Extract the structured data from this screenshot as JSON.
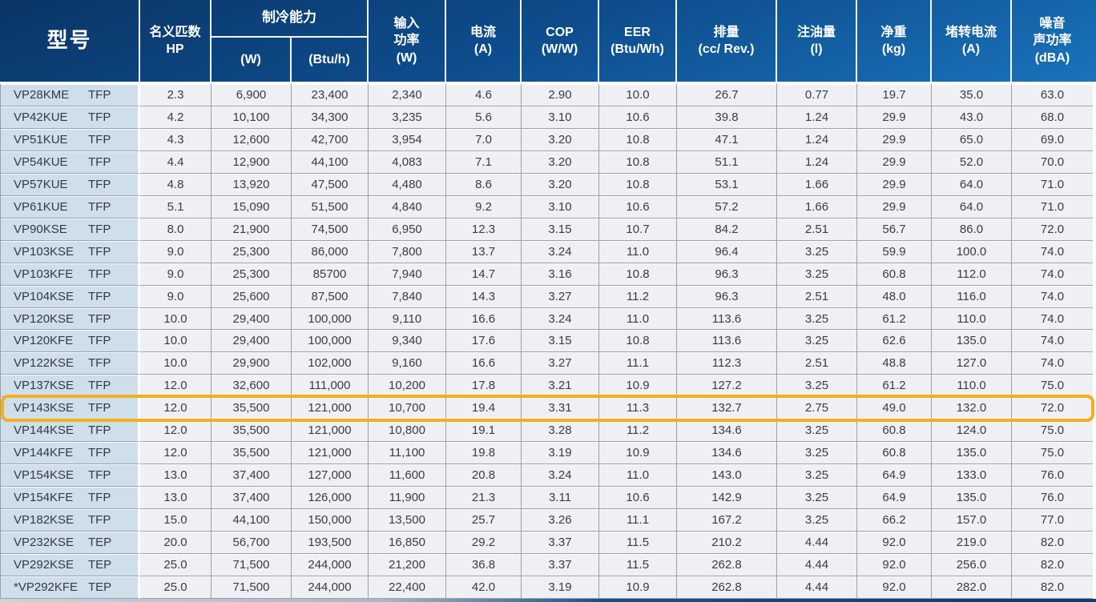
{
  "table": {
    "header": {
      "model": "型号",
      "hp": [
        "名义匹数",
        "HP"
      ],
      "cooling": "制冷能力",
      "cooling_w": "(W)",
      "cooling_btuh": "(Btu/h)",
      "input_power": [
        "输入",
        "功率",
        "(W)"
      ],
      "current": [
        "电流",
        "(A)"
      ],
      "cop": [
        "COP",
        "(W/W)"
      ],
      "eer": [
        "EER",
        "(Btu/Wh)"
      ],
      "displacement": [
        "排量",
        "(cc/ Rev.)"
      ],
      "oil_charge": [
        "注油量",
        "(l)"
      ],
      "net_weight": [
        "净重",
        "(kg)"
      ],
      "locked_rotor_current": [
        "堵转电流",
        "(A)"
      ],
      "noise": [
        "噪音",
        "声功率",
        "(dBA)"
      ]
    },
    "rows": [
      {
        "model": "VP28KME",
        "type": "TFP",
        "values": [
          "2.3",
          "6,900",
          "23,400",
          "2,340",
          "4.6",
          "2.90",
          "10.0",
          "26.7",
          "0.77",
          "19.7",
          "35.0",
          "63.0"
        ]
      },
      {
        "model": "VP42KUE",
        "type": "TFP",
        "values": [
          "4.2",
          "10,100",
          "34,300",
          "3,235",
          "5.6",
          "3.10",
          "10.6",
          "39.8",
          "1.24",
          "29.9",
          "43.0",
          "68.0"
        ]
      },
      {
        "model": "VP51KUE",
        "type": "TFP",
        "values": [
          "4.3",
          "12,600",
          "42,700",
          "3,954",
          "7.0",
          "3.20",
          "10.8",
          "47.1",
          "1.24",
          "29.9",
          "65.0",
          "69.0"
        ]
      },
      {
        "model": "VP54KUE",
        "type": "TFP",
        "values": [
          "4.4",
          "12,900",
          "44,100",
          "4,083",
          "7.1",
          "3.20",
          "10.8",
          "51.1",
          "1.24",
          "29.9",
          "52.0",
          "70.0"
        ]
      },
      {
        "model": "VP57KUE",
        "type": "TFP",
        "values": [
          "4.8",
          "13,920",
          "47,500",
          "4,480",
          "8.6",
          "3.20",
          "10.8",
          "53.1",
          "1.66",
          "29.9",
          "64.0",
          "71.0"
        ]
      },
      {
        "model": "VP61KUE",
        "type": "TFP",
        "values": [
          "5.1",
          "15,090",
          "51,500",
          "4,840",
          "9.2",
          "3.10",
          "10.6",
          "57.2",
          "1.66",
          "29.9",
          "64.0",
          "71.0"
        ]
      },
      {
        "model": "VP90KSE",
        "type": "TFP",
        "values": [
          "8.0",
          "21,900",
          "74,500",
          "6,950",
          "12.3",
          "3.15",
          "10.7",
          "84.2",
          "2.51",
          "56.7",
          "86.0",
          "72.0"
        ]
      },
      {
        "model": "VP103KSE",
        "type": "TFP",
        "values": [
          "9.0",
          "25,300",
          "86,000",
          "7,800",
          "13.7",
          "3.24",
          "11.0",
          "96.4",
          "3.25",
          "59.9",
          "100.0",
          "74.0"
        ]
      },
      {
        "model": "VP103KFE",
        "type": "TFP",
        "values": [
          "9.0",
          "25,300",
          "85700",
          "7,940",
          "14.7",
          "3.16",
          "10.8",
          "96.3",
          "3.25",
          "60.8",
          "112.0",
          "74.0"
        ]
      },
      {
        "model": "VP104KSE",
        "type": "TFP",
        "values": [
          "9.0",
          "25,600",
          "87,500",
          "7,840",
          "14.3",
          "3.27",
          "11.2",
          "96.3",
          "2.51",
          "48.0",
          "116.0",
          "74.0"
        ]
      },
      {
        "model": "VP120KSE",
        "type": "TFP",
        "values": [
          "10.0",
          "29,400",
          "100,000",
          "9,110",
          "16.6",
          "3.24",
          "11.0",
          "113.6",
          "3.25",
          "61.2",
          "110.0",
          "74.0"
        ]
      },
      {
        "model": "VP120KFE",
        "type": "TFP",
        "values": [
          "10.0",
          "29,400",
          "100,000",
          "9,340",
          "17.6",
          "3.15",
          "10.8",
          "113.6",
          "3.25",
          "62.6",
          "135.0",
          "74.0"
        ]
      },
      {
        "model": "VP122KSE",
        "type": "TFP",
        "values": [
          "10.0",
          "29,900",
          "102,000",
          "9,160",
          "16.6",
          "3.27",
          "11.1",
          "112.3",
          "2.51",
          "48.8",
          "127.0",
          "74.0"
        ]
      },
      {
        "model": "VP137KSE",
        "type": "TFP",
        "values": [
          "12.0",
          "32,600",
          "111,000",
          "10,200",
          "17.8",
          "3.21",
          "10.9",
          "127.2",
          "3.25",
          "61.2",
          "110.0",
          "75.0"
        ]
      },
      {
        "model": "VP143KSE",
        "type": "TFP",
        "values": [
          "12.0",
          "35,500",
          "121,000",
          "10,700",
          "19.4",
          "3.31",
          "11.3",
          "132.7",
          "2.75",
          "49.0",
          "132.0",
          "72.0"
        ]
      },
      {
        "model": "VP144KSE",
        "type": "TFP",
        "values": [
          "12.0",
          "35,500",
          "121,000",
          "10,800",
          "19.1",
          "3.28",
          "11.2",
          "134.6",
          "3.25",
          "60.8",
          "124.0",
          "75.0"
        ]
      },
      {
        "model": "VP144KFE",
        "type": "TFP",
        "values": [
          "12.0",
          "35,500",
          "121,000",
          "11,100",
          "19.8",
          "3.19",
          "10.9",
          "134.6",
          "3.25",
          "60.8",
          "135.0",
          "75.0"
        ]
      },
      {
        "model": "VP154KSE",
        "type": "TFP",
        "values": [
          "13.0",
          "37,400",
          "127,000",
          "11,600",
          "20.8",
          "3.24",
          "11.0",
          "143.0",
          "3.25",
          "64.9",
          "133.0",
          "76.0"
        ]
      },
      {
        "model": "VP154KFE",
        "type": "TFP",
        "values": [
          "13.0",
          "37,400",
          "126,000",
          "11,900",
          "21.3",
          "3.11",
          "10.6",
          "142.9",
          "3.25",
          "64.9",
          "135.0",
          "76.0"
        ]
      },
      {
        "model": "VP182KSE",
        "type": "TFP",
        "values": [
          "15.0",
          "44,100",
          "150,000",
          "13,500",
          "25.7",
          "3.26",
          "11.1",
          "167.2",
          "3.25",
          "66.2",
          "157.0",
          "77.0"
        ]
      },
      {
        "model": "VP232KSE",
        "type": "TEP",
        "values": [
          "20.0",
          "56,700",
          "193,500",
          "16,850",
          "29.2",
          "3.37",
          "11.5",
          "210.2",
          "4.44",
          "92.0",
          "219.0",
          "82.0"
        ]
      },
      {
        "model": "VP292KSE",
        "type": "TEP",
        "values": [
          "25.0",
          "71,500",
          "244,000",
          "21,200",
          "36.8",
          "3.37",
          "11.5",
          "262.8",
          "4.44",
          "92.0",
          "256.0",
          "82.0"
        ]
      },
      {
        "model": "*VP292KFE",
        "type": "TEP",
        "values": [
          "25.0",
          "71,500",
          "244,000",
          "22,400",
          "42.0",
          "3.19",
          "10.9",
          "262.8",
          "4.44",
          "92.0",
          "282.0",
          "82.0"
        ]
      }
    ],
    "highlight": {
      "model": "VP143KSE",
      "border_color": "#f2b01d"
    }
  },
  "colors": {
    "header_gradient_top": "#0a3566",
    "header_gradient_bottom": "#1a73bb",
    "header_text": "#ffffff",
    "model_column_bg": "#cfdeeb",
    "cell_bg": "#eef0f4",
    "grid_line": "#99a1aa",
    "highlight_border": "#f2b01d"
  }
}
